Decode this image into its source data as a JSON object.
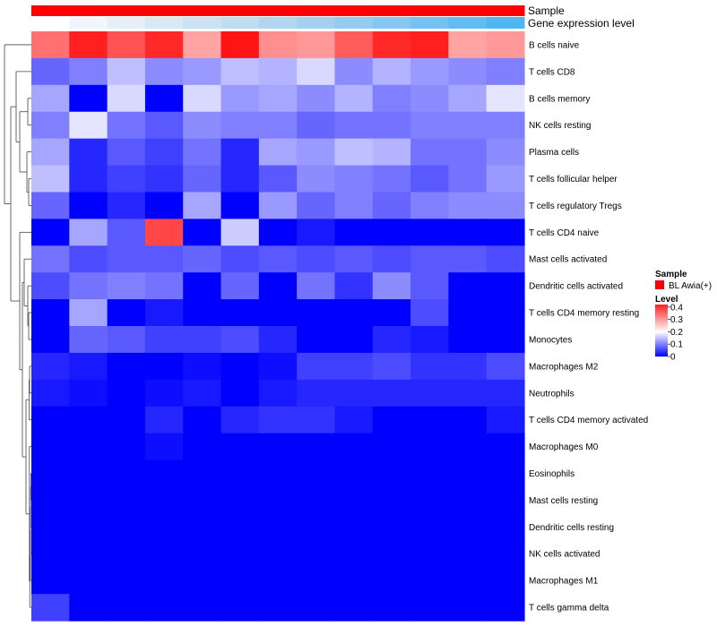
{
  "chart_data": {
    "type": "heatmap",
    "annotation_tracks": [
      {
        "name": "Sample",
        "colors": [
          "#ff0000",
          "#ff0000",
          "#ff0000",
          "#ff0000",
          "#ff0000",
          "#ff0000",
          "#ff0000",
          "#ff0000",
          "#ff0000",
          "#ff0000",
          "#ff0000",
          "#ff0000",
          "#ff0000"
        ]
      },
      {
        "name": "Gene expression level",
        "colors": [
          "#ffffff",
          "#f2f6fa",
          "#e6eff7",
          "#d9e8f5",
          "#cce2f4",
          "#bfdcf3",
          "#b2d6f2",
          "#a3d0f1",
          "#95cbf1",
          "#86c6f1",
          "#75c1f1",
          "#62bbf1",
          "#4fb7f0"
        ]
      }
    ],
    "rows": [
      "B cells naive",
      "T cells CD8",
      "B cells memory",
      "NK cells resting",
      "Plasma cells",
      "T cells follicular helper",
      "T cells regulatory  Tregs",
      "T cells CD4 naive",
      "Mast cells activated",
      "Dendritic cells activated",
      "T cells CD4 memory resting",
      "Monocytes",
      "Macrophages M2",
      "Neutrophils",
      "T cells CD4 memory activated",
      "Macrophages M0",
      "Eosinophils",
      "Mast cells resting",
      "Dendritic cells resting",
      "NK cells activated",
      "Macrophages M1",
      "T cells gamma delta"
    ],
    "n_samples": 13,
    "values": [
      [
        0.34,
        0.42,
        0.37,
        0.41,
        0.29,
        0.43,
        0.31,
        0.3,
        0.36,
        0.41,
        0.42,
        0.29,
        0.3
      ],
      [
        0.08,
        0.1,
        0.15,
        0.11,
        0.12,
        0.15,
        0.14,
        0.17,
        0.11,
        0.14,
        0.12,
        0.11,
        0.1
      ],
      [
        0.13,
        0.0,
        0.17,
        0.0,
        0.17,
        0.12,
        0.13,
        0.11,
        0.14,
        0.1,
        0.11,
        0.13,
        0.18
      ],
      [
        0.1,
        0.18,
        0.09,
        0.07,
        0.11,
        0.1,
        0.1,
        0.08,
        0.09,
        0.09,
        0.1,
        0.1,
        0.1
      ],
      [
        0.13,
        0.03,
        0.07,
        0.05,
        0.09,
        0.03,
        0.13,
        0.12,
        0.15,
        0.14,
        0.09,
        0.09,
        0.11
      ],
      [
        0.15,
        0.03,
        0.05,
        0.04,
        0.08,
        0.03,
        0.07,
        0.11,
        0.1,
        0.09,
        0.07,
        0.09,
        0.12
      ],
      [
        0.08,
        0.0,
        0.03,
        0.0,
        0.13,
        0.0,
        0.12,
        0.08,
        0.1,
        0.08,
        0.1,
        0.11,
        0.11
      ],
      [
        0.0,
        0.13,
        0.07,
        0.38,
        0.0,
        0.16,
        0.0,
        0.02,
        0.0,
        0.0,
        0.0,
        0.0,
        0.0
      ],
      [
        0.09,
        0.06,
        0.07,
        0.07,
        0.08,
        0.06,
        0.07,
        0.06,
        0.07,
        0.06,
        0.07,
        0.07,
        0.06
      ],
      [
        0.06,
        0.09,
        0.1,
        0.09,
        0.0,
        0.08,
        0.0,
        0.09,
        0.04,
        0.11,
        0.07,
        0.0,
        0.0
      ],
      [
        0.0,
        0.13,
        0.0,
        0.02,
        0.0,
        0.0,
        0.0,
        0.0,
        0.0,
        0.0,
        0.06,
        0.0,
        0.0
      ],
      [
        0.0,
        0.08,
        0.07,
        0.05,
        0.05,
        0.06,
        0.03,
        0.0,
        0.0,
        0.03,
        0.02,
        0.0,
        0.0
      ],
      [
        0.03,
        0.02,
        0.0,
        0.0,
        0.01,
        0.0,
        0.01,
        0.05,
        0.05,
        0.06,
        0.04,
        0.04,
        0.06
      ],
      [
        0.02,
        0.01,
        0.0,
        0.01,
        0.02,
        0.0,
        0.02,
        0.03,
        0.03,
        0.03,
        0.03,
        0.03,
        0.03
      ],
      [
        0.0,
        0.0,
        0.0,
        0.03,
        0.0,
        0.03,
        0.04,
        0.04,
        0.02,
        0.0,
        0.0,
        0.0,
        0.02
      ],
      [
        0.0,
        0.0,
        0.0,
        0.01,
        0.0,
        0.0,
        0.0,
        0.0,
        0.0,
        0.0,
        0.0,
        0.0,
        0.0
      ],
      [
        0.0,
        0.0,
        0.0,
        0.0,
        0.0,
        0.0,
        0.0,
        0.0,
        0.0,
        0.0,
        0.0,
        0.0,
        0.0
      ],
      [
        0.0,
        0.0,
        0.0,
        0.0,
        0.0,
        0.0,
        0.0,
        0.0,
        0.0,
        0.0,
        0.0,
        0.0,
        0.0
      ],
      [
        0.0,
        0.0,
        0.0,
        0.0,
        0.0,
        0.0,
        0.0,
        0.0,
        0.0,
        0.0,
        0.0,
        0.0,
        0.0
      ],
      [
        0.0,
        0.0,
        0.0,
        0.0,
        0.0,
        0.0,
        0.0,
        0.0,
        0.0,
        0.0,
        0.0,
        0.0,
        0.0
      ],
      [
        0.0,
        0.0,
        0.0,
        0.0,
        0.0,
        0.0,
        0.0,
        0.0,
        0.0,
        0.0,
        0.0,
        0.0,
        0.0
      ],
      [
        0.05,
        0.0,
        0.0,
        0.0,
        0.0,
        0.0,
        0.0,
        0.0,
        0.0,
        0.0,
        0.0,
        0.0,
        0.0
      ]
    ],
    "color_scale": {
      "min": 0,
      "mid": 0.2,
      "max": 0.45,
      "low_color": "#0000ff",
      "mid_color": "#ffffff",
      "high_color": "#ff0000"
    },
    "legend": {
      "sample_title": "Sample",
      "sample_label": "BL Awia(+)",
      "sample_color": "#ff0000",
      "level_title": "Level",
      "ticks": [
        "0.4",
        "0.3",
        "0.2",
        "0.1",
        "0"
      ],
      "tick_values": [
        0.4,
        0.3,
        0.2,
        0.1,
        0
      ]
    },
    "row_dendrogram": true
  }
}
